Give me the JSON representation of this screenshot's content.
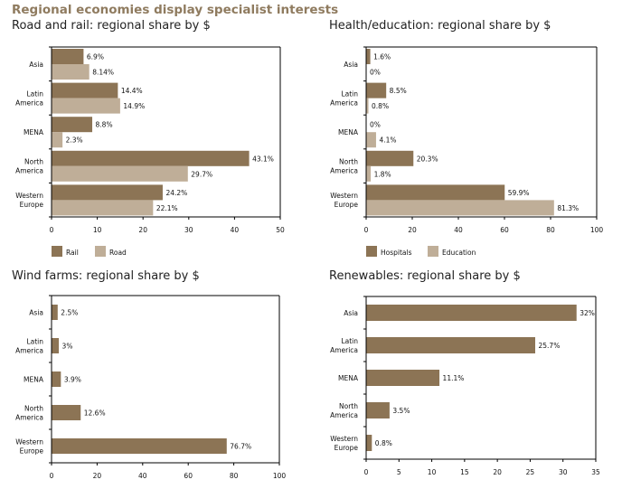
{
  "title": "Regional economies display specialist interests",
  "colors": {
    "dark": "#8c7455",
    "light": "#bfae98"
  },
  "chart_data": [
    {
      "type": "bar",
      "orientation": "horizontal",
      "title": "Road and rail: regional share by $",
      "categories": [
        "Asia",
        "Latin\nAmerica",
        "MENA",
        "North\nAmerica",
        "Western\nEurope"
      ],
      "series": [
        {
          "name": "Rail",
          "values": [
            6.9,
            14.4,
            8.8,
            43.1,
            24.2
          ],
          "labels": [
            "6.9%",
            "14.4%",
            "8.8%",
            "43.1%",
            "24.2%"
          ],
          "color": "#8c7455"
        },
        {
          "name": "Road",
          "values": [
            8.14,
            14.9,
            2.3,
            29.7,
            22.1
          ],
          "labels": [
            "8.14%",
            "14.9%",
            "2.3%",
            "29.7%",
            "22.1%"
          ],
          "color": "#bfae98"
        }
      ],
      "xlim": [
        0,
        50
      ],
      "xticks": [
        0,
        10,
        20,
        30,
        40,
        50
      ],
      "legend": "bottom-left",
      "grid": false
    },
    {
      "type": "bar",
      "orientation": "horizontal",
      "title": "Health/education: regional share by $",
      "categories": [
        "Asia",
        "Latin\nAmerica",
        "MENA",
        "North\nAmerica",
        "Western\nEurope"
      ],
      "series": [
        {
          "name": "Hospitals",
          "values": [
            1.6,
            8.5,
            0,
            20.3,
            59.9
          ],
          "labels": [
            "1.6%",
            "8.5%",
            "0%",
            "20.3%",
            "59.9%"
          ],
          "color": "#8c7455"
        },
        {
          "name": "Education",
          "values": [
            0,
            0.8,
            4.1,
            1.8,
            81.3
          ],
          "labels": [
            "0%",
            "0.8%",
            "4.1%",
            "1.8%",
            "81.3%"
          ],
          "color": "#bfae98"
        }
      ],
      "xlim": [
        0,
        100
      ],
      "xticks": [
        0,
        20,
        40,
        60,
        80,
        100
      ],
      "legend": "bottom-left",
      "grid": false
    },
    {
      "type": "bar",
      "orientation": "horizontal",
      "title": "Wind farms: regional share by $",
      "categories": [
        "Asia",
        "Latin\nAmerica",
        "MENA",
        "North\nAmerica",
        "Western\nEurope"
      ],
      "series": [
        {
          "values": [
            2.5,
            3,
            3.9,
            12.6,
            76.7
          ],
          "labels": [
            "2.5%",
            "3%",
            "3.9%",
            "12.6%",
            "76.7%"
          ],
          "color": "#8c7455"
        }
      ],
      "xlim": [
        0,
        100
      ],
      "xticks": [
        0,
        20,
        40,
        60,
        80,
        100
      ],
      "grid": false
    },
    {
      "type": "bar",
      "orientation": "horizontal",
      "title": "Renewables: regional share by $",
      "categories": [
        "Asia",
        "Latin\nAmerica",
        "MENA",
        "North\nAmerica",
        "Western\nEurope"
      ],
      "series": [
        {
          "values": [
            32,
            25.7,
            11.1,
            3.5,
            0.8
          ],
          "labels": [
            "32%",
            "25.7%",
            "11.1%",
            "3.5%",
            "0.8%"
          ],
          "color": "#8c7455"
        }
      ],
      "xlim": [
        0,
        35
      ],
      "xticks": [
        0,
        5,
        10,
        15,
        20,
        25,
        30,
        35
      ],
      "grid": false
    }
  ]
}
